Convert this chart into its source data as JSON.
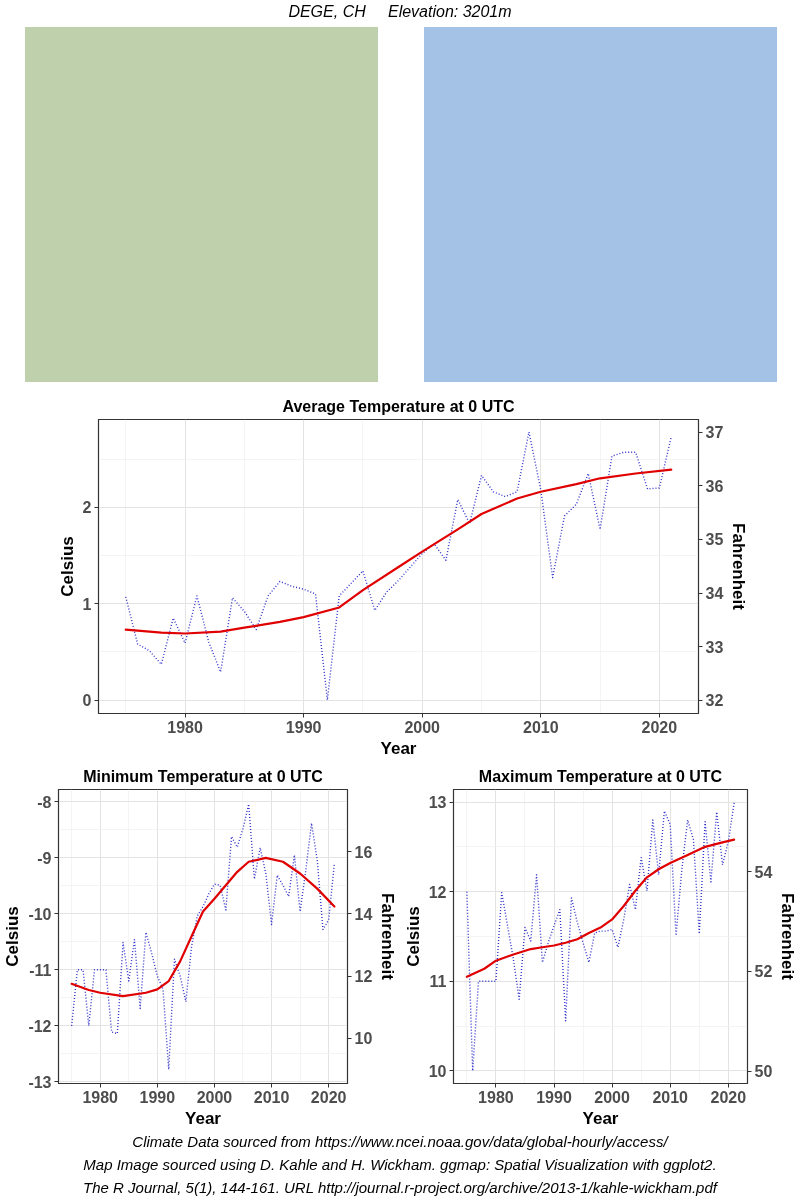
{
  "chart_data": [
    {
      "type": "other",
      "title": "DEGE, CH     Elevation: 3201m"
    },
    {
      "type": "line",
      "title": "Average Temperature at 0 UTC",
      "xlabel": "Year",
      "ylabel": "Celsius",
      "y2label": "Fahrenheit",
      "xlim": [
        1972.7,
        2023.3
      ],
      "xticks": [
        1980,
        1990,
        2000,
        2010,
        2020
      ],
      "ylim": [
        -0.14,
        2.91
      ],
      "yticks": [
        0,
        1,
        2
      ],
      "y2lim": [
        31.75,
        37.24
      ],
      "y2ticks": [
        32,
        33,
        34,
        35,
        36,
        37
      ],
      "grid": true,
      "series": [
        {
          "color": "#3333cc",
          "line_style": "dotted",
          "x": [
            1975,
            1976,
            1977,
            1978,
            1979,
            1980,
            1981,
            1982,
            1983,
            1984,
            1985,
            1986,
            1987,
            1988,
            1989,
            1990,
            1991,
            1992,
            1993,
            1994,
            1995,
            1996,
            1997,
            1998,
            1999,
            2000,
            2001,
            2002,
            2003,
            2004,
            2005,
            2006,
            2007,
            2008,
            2009,
            2010,
            2011,
            2012,
            2013,
            2014,
            2015,
            2016,
            2017,
            2018,
            2019,
            2020,
            2021
          ],
          "values": [
            1.07,
            0.58,
            0.51,
            0.37,
            0.85,
            0.59,
            1.08,
            0.6,
            0.29,
            1.06,
            0.92,
            0.73,
            1.08,
            1.23,
            1.18,
            1.15,
            1.1,
            0.0,
            1.08,
            1.21,
            1.34,
            0.93,
            1.12,
            1.24,
            1.38,
            1.52,
            1.62,
            1.45,
            2.08,
            1.83,
            2.33,
            2.16,
            2.11,
            2.16,
            2.78,
            2.18,
            1.27,
            1.91,
            2.03,
            2.35,
            1.77,
            2.53,
            2.57,
            2.57,
            2.19,
            2.2,
            2.73
          ]
        },
        {
          "color": "#e00000",
          "line_style": "solid",
          "x": [
            1975,
            1978,
            1980,
            1983,
            1985,
            1988,
            1990,
            1993,
            1995,
            1998,
            2000,
            2003,
            2005,
            2008,
            2010,
            2013,
            2015,
            2018,
            2021
          ],
          "values": [
            0.73,
            0.7,
            0.69,
            0.71,
            0.75,
            0.81,
            0.86,
            0.96,
            1.14,
            1.38,
            1.54,
            1.77,
            1.93,
            2.09,
            2.16,
            2.24,
            2.3,
            2.35,
            2.39
          ]
        }
      ]
    },
    {
      "type": "line",
      "title": "Minimum Temperature at 0 UTC",
      "xlabel": "Year",
      "ylabel": "Celsius",
      "y2label": "Fahrenheit",
      "xlim": [
        1972.7,
        2023.3
      ],
      "xticks": [
        1980,
        1990,
        2000,
        2010,
        2020
      ],
      "ylim": [
        -13.03,
        -7.78
      ],
      "yticks": [
        -13,
        -12,
        -11,
        -10,
        -9,
        -8
      ],
      "y2lim": [
        8.55,
        18.0
      ],
      "y2ticks": [
        10,
        12,
        14,
        16
      ],
      "grid": true,
      "series": [
        {
          "color": "#3333cc",
          "line_style": "dotted",
          "x": [
            1975,
            1976,
            1977,
            1978,
            1979,
            1980,
            1981,
            1982,
            1983,
            1984,
            1985,
            1986,
            1987,
            1988,
            1989,
            1990,
            1991,
            1992,
            1993,
            1994,
            1995,
            1996,
            1997,
            1998,
            1999,
            2000,
            2001,
            2002,
            2003,
            2004,
            2005,
            2006,
            2007,
            2008,
            2009,
            2010,
            2011,
            2012,
            2013,
            2014,
            2015,
            2016,
            2017,
            2018,
            2019,
            2020,
            2021
          ],
          "values": [
            -12.0,
            -11.0,
            -11.0,
            -12.0,
            -11.0,
            -11.0,
            -11.0,
            -12.11,
            -12.14,
            -10.51,
            -11.2,
            -10.46,
            -11.69,
            -10.33,
            -10.7,
            -11.11,
            -11.35,
            -12.78,
            -10.81,
            -11.11,
            -11.57,
            -10.58,
            -10.04,
            -9.87,
            -9.65,
            -9.47,
            -9.49,
            -9.93,
            -8.62,
            -8.81,
            -8.48,
            -8.04,
            -9.38,
            -8.82,
            -9.28,
            -10.19,
            -9.31,
            -9.49,
            -9.69,
            -8.95,
            -9.96,
            -9.22,
            -8.38,
            -9.04,
            -10.28,
            -10.11,
            -9.1
          ]
        },
        {
          "color": "#e00000",
          "line_style": "solid",
          "x": [
            1975,
            1978,
            1980,
            1984,
            1988,
            1990,
            1992,
            1994,
            1996,
            1998,
            2000,
            2002,
            2004,
            2006,
            2009,
            2012,
            2015,
            2018,
            2021
          ],
          "values": [
            -11.25,
            -11.36,
            -11.41,
            -11.47,
            -11.41,
            -11.35,
            -11.2,
            -10.85,
            -10.4,
            -9.96,
            -9.73,
            -9.49,
            -9.25,
            -9.07,
            -9.0,
            -9.07,
            -9.28,
            -9.55,
            -9.87
          ]
        }
      ]
    },
    {
      "type": "line",
      "title": "Maximum Temperature at 0 UTC",
      "xlabel": "Year",
      "ylabel": "Celsius",
      "y2label": "Fahrenheit",
      "xlim": [
        1972.7,
        2023.3
      ],
      "xticks": [
        1980,
        1990,
        2000,
        2010,
        2020
      ],
      "ylim": [
        9.86,
        13.14
      ],
      "yticks": [
        10,
        11,
        12,
        13
      ],
      "y2lim": [
        49.75,
        55.65
      ],
      "y2ticks": [
        50,
        52,
        54
      ],
      "grid": true,
      "series": [
        {
          "color": "#3333cc",
          "line_style": "dotted",
          "x": [
            1975,
            1976,
            1977,
            1978,
            1979,
            1980,
            1981,
            1982,
            1983,
            1984,
            1985,
            1986,
            1987,
            1988,
            1989,
            1990,
            1991,
            1992,
            1993,
            1994,
            1995,
            1996,
            1997,
            1998,
            1999,
            2000,
            2001,
            2002,
            2003,
            2004,
            2005,
            2006,
            2007,
            2008,
            2009,
            2010,
            2011,
            2012,
            2013,
            2014,
            2015,
            2016,
            2017,
            2018,
            2019,
            2020,
            2021
          ],
          "values": [
            12.0,
            10.0,
            11.0,
            11.0,
            11.0,
            11.0,
            11.99,
            11.62,
            11.25,
            10.8,
            11.6,
            11.45,
            12.19,
            11.21,
            11.43,
            11.62,
            11.8,
            10.56,
            11.93,
            11.66,
            11.43,
            11.21,
            11.54,
            11.56,
            11.56,
            11.58,
            11.38,
            11.69,
            12.08,
            11.8,
            12.38,
            12.01,
            12.8,
            12.19,
            12.9,
            12.75,
            11.51,
            12.25,
            12.8,
            12.58,
            11.53,
            12.78,
            12.11,
            12.89,
            12.3,
            12.56,
            12.99
          ]
        },
        {
          "color": "#e00000",
          "line_style": "solid",
          "x": [
            1975,
            1978,
            1980,
            1983,
            1986,
            1988,
            1990,
            1992,
            1994,
            1996,
            1998,
            2000,
            2002,
            2004,
            2006,
            2008,
            2010,
            2013,
            2016,
            2019,
            2021
          ],
          "values": [
            11.05,
            11.14,
            11.23,
            11.3,
            11.36,
            11.38,
            11.4,
            11.43,
            11.47,
            11.54,
            11.6,
            11.69,
            11.84,
            12.01,
            12.16,
            12.25,
            12.32,
            12.41,
            12.5,
            12.55,
            12.58
          ]
        }
      ]
    },
    {
      "type": "other",
      "annotations": [
        "Climate Data sourced from https://www.ncei.noaa.gov/data/global-hourly/access/",
        "Map Image sourced using D. Kahle and H. Wickham. ggmap: Spatial Visualization with ggplot2.",
        "The R Journal, 5(1), 144-161. URL http://journal.r-project.org/archive/2013-1/kahle-wickham.pdf"
      ]
    }
  ]
}
